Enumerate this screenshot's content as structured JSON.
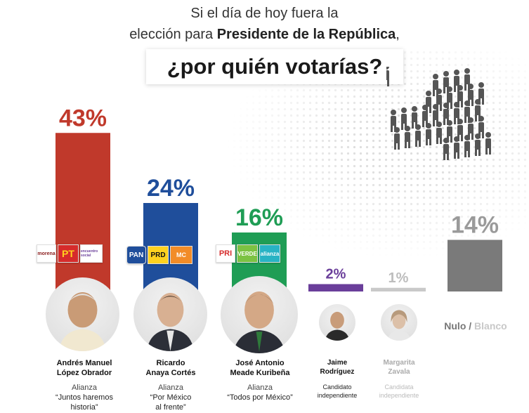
{
  "header": {
    "line1": "Si el día de hoy fuera la",
    "line2_a": "elección para ",
    "line2_b": "Presidente de la República",
    "line2_c": ",",
    "question": "¿por quién votarías?"
  },
  "colors": {
    "morena": "#c0392b",
    "pan": "#1f4e9b",
    "pri": "#1f9d55",
    "independent_jaime": "#6a3e9a",
    "independent_margarita": "#c9c9c9",
    "nulo": "#7a7a7a"
  },
  "candidates": [
    {
      "name1": "Andrés Manuel",
      "name2": "López Obrador",
      "alliance": "Alianza",
      "motto1": "“Juntos haremos",
      "motto2": "historia”",
      "logos": [
        "morena",
        "PT",
        "encuentro social"
      ]
    },
    {
      "name1": "Ricardo",
      "name2": "Anaya Cortés",
      "alliance": "Alianza",
      "motto1": "“Por México",
      "motto2": "al frente”",
      "logos": [
        "PAN",
        "PRD",
        "MC"
      ]
    },
    {
      "name1": "José Antonio",
      "name2": "Meade Kuribeña",
      "alliance": "Alianza",
      "motto1": "“Todos por México”",
      "motto2": "",
      "logos": [
        "PRI",
        "VERDE",
        "alianza"
      ]
    },
    {
      "name1": "Jaime",
      "name2": "Rodríguez",
      "alliance": "Candidato",
      "motto1": "independiente",
      "motto2": ""
    },
    {
      "name1": "Margarita",
      "name2": "Zavala",
      "alliance": "Candidata",
      "motto1": "independiente",
      "motto2": ""
    }
  ],
  "nulo_label": {
    "a": "Nulo / ",
    "b": "Blanco"
  },
  "chart_data": {
    "type": "bar",
    "categories": [
      "Andrés Manuel López Obrador",
      "Ricardo Anaya Cortés",
      "José Antonio Meade Kuribeña",
      "Jaime Rodríguez",
      "Margarita Zavala",
      "Nulo / Blanco"
    ],
    "values": [
      43,
      24,
      16,
      2,
      1,
      14
    ],
    "value_labels": [
      "43%",
      "24%",
      "16%",
      "2%",
      "1%",
      "14%"
    ],
    "colors": [
      "#c0392b",
      "#1f4e9b",
      "#1f9d55",
      "#6a3e9a",
      "#c9c9c9",
      "#7a7a7a"
    ],
    "label_colors": [
      "#c0392b",
      "#1f4e9b",
      "#1f9d55",
      "#6a3e9a",
      "#bdbdbd",
      "#9a9a9a"
    ],
    "title": "",
    "xlabel": "",
    "ylabel": "",
    "ylim": [
      0,
      50
    ],
    "grid": false,
    "legend": "none"
  }
}
